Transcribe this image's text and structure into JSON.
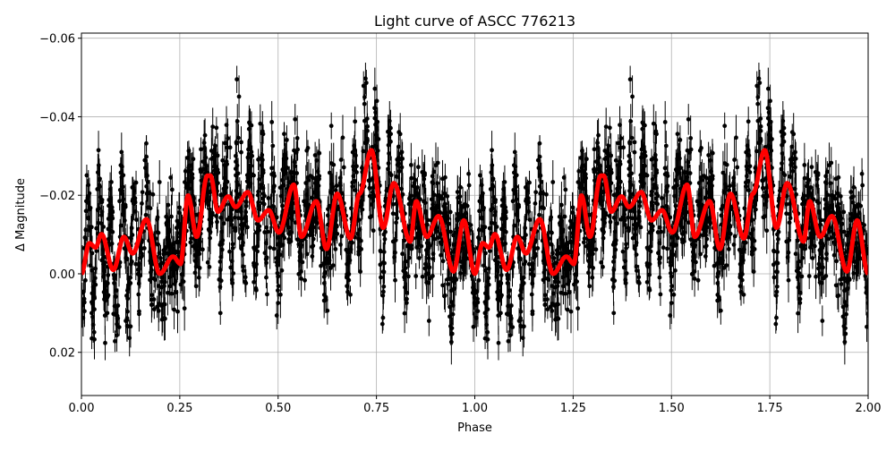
{
  "chart_data": {
    "type": "scatter",
    "title": "Light curve of ASCC 776213",
    "xlabel": "Phase",
    "ylabel": "Δ Magnitude",
    "xlim": [
      0,
      2
    ],
    "ylim": [
      0.031,
      -0.0613
    ],
    "y_inverted": true,
    "grid": true,
    "xticks": [
      "0.00",
      "0.25",
      "0.50",
      "0.75",
      "1.00",
      "1.25",
      "1.50",
      "1.75",
      "2.00"
    ],
    "xtick_values": [
      0,
      0.25,
      0.5,
      0.75,
      1,
      1.25,
      1.5,
      1.75,
      2
    ],
    "yticks": [
      "−0.06",
      "−0.04",
      "−0.02",
      "0.00",
      "0.02"
    ],
    "ytick_values": [
      -0.06,
      -0.04,
      -0.02,
      0,
      0.02
    ],
    "observations": {
      "style": "black points with vertical error bars",
      "color": "#000000"
    },
    "model": {
      "color": "#ff0000",
      "period_phase": 1,
      "phase": [
        0,
        0.02,
        0.036,
        0.051,
        0.081,
        0.108,
        0.13,
        0.165,
        0.199,
        0.233,
        0.252,
        0.271,
        0.293,
        0.32,
        0.328,
        0.347,
        0.373,
        0.392,
        0.423,
        0.449,
        0.476,
        0.502,
        0.54,
        0.559,
        0.597,
        0.623,
        0.65,
        0.684,
        0.707,
        0.737,
        0.767,
        0.794,
        0.836,
        0.851,
        0.878,
        0.908,
        0.946,
        0.972,
        1.0
      ],
      "magnitude": [
        0,
        -0.0078,
        -0.0067,
        -0.0101,
        -0.001,
        -0.0094,
        -0.0052,
        -0.0139,
        0,
        -0.0044,
        -0.0025,
        -0.02,
        -0.0094,
        -0.025,
        -0.025,
        -0.0158,
        -0.0197,
        -0.017,
        -0.0208,
        -0.0136,
        -0.0162,
        -0.0105,
        -0.0227,
        -0.0094,
        -0.0185,
        -0.0063,
        -0.0204,
        -0.009,
        -0.0204,
        -0.0315,
        -0.0117,
        -0.0231,
        -0.0082,
        -0.0185,
        -0.0094,
        -0.0147,
        -0.0006,
        -0.0136,
        0
      ]
    }
  }
}
